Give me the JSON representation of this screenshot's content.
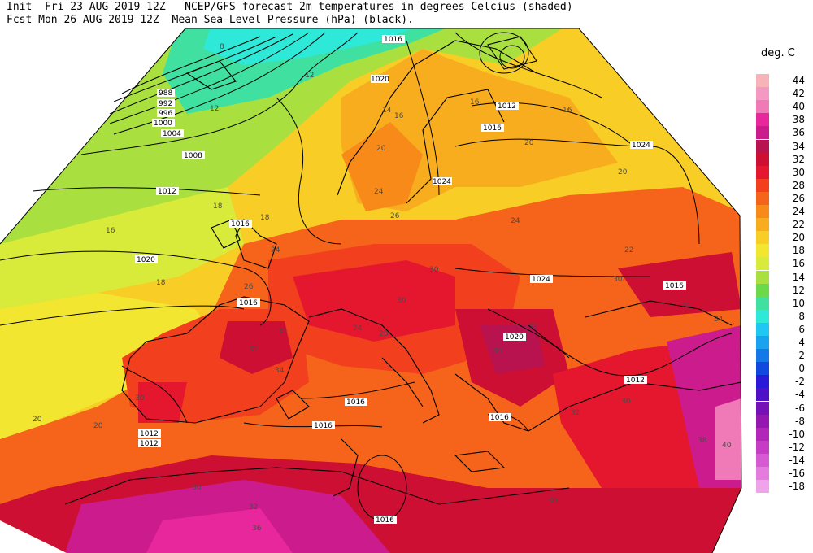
{
  "header": {
    "line1": "Init  Fri 23 AUG 2019 12Z   NCEP/GFS forecast 2m temperatures in degrees Celcius (shaded)",
    "line2": "Fcst Mon 26 AUG 2019 12Z  Mean Sea-Level Pressure (hPa) (black)."
  },
  "legend": {
    "title": "deg. C",
    "items": [
      {
        "label": "44",
        "color": "#f6b3b8"
      },
      {
        "label": "42",
        "color": "#f49ac2"
      },
      {
        "label": "40",
        "color": "#f07ab8"
      },
      {
        "label": "38",
        "color": "#e9279c"
      },
      {
        "label": "36",
        "color": "#cc1b8c"
      },
      {
        "label": "34",
        "color": "#b8134f"
      },
      {
        "label": "32",
        "color": "#cc0f33"
      },
      {
        "label": "30",
        "color": "#e5172e"
      },
      {
        "label": "28",
        "color": "#f2401e"
      },
      {
        "label": "26",
        "color": "#f5641a"
      },
      {
        "label": "24",
        "color": "#f78a18"
      },
      {
        "label": "22",
        "color": "#f7ad1e"
      },
      {
        "label": "20",
        "color": "#f7cd26"
      },
      {
        "label": "18",
        "color": "#f3e631"
      },
      {
        "label": "16",
        "color": "#d8ea3a"
      },
      {
        "label": "14",
        "color": "#a9e040"
      },
      {
        "label": "12",
        "color": "#6cd84c"
      },
      {
        "label": "10",
        "color": "#3fe0a0"
      },
      {
        "label": "8",
        "color": "#2ee8d8"
      },
      {
        "label": "6",
        "color": "#1fc8f0"
      },
      {
        "label": "4",
        "color": "#18a3ee"
      },
      {
        "label": "2",
        "color": "#1478e8"
      },
      {
        "label": "0",
        "color": "#1048e0"
      },
      {
        "label": "-2",
        "color": "#2a1ad8"
      },
      {
        "label": "-4",
        "color": "#5010c8"
      },
      {
        "label": "-6",
        "color": "#7412b8"
      },
      {
        "label": "-8",
        "color": "#9418b0"
      },
      {
        "label": "-10",
        "color": "#b226b8"
      },
      {
        "label": "-12",
        "color": "#c63cc4"
      },
      {
        "label": "-14",
        "color": "#d65ad2"
      },
      {
        "label": "-16",
        "color": "#e47cde"
      },
      {
        "label": "-18",
        "color": "#f0a2ea"
      }
    ]
  },
  "isobar_labels": [
    "988",
    "992",
    "996",
    "1000",
    "1004",
    "1008",
    "1012",
    "1016",
    "1020",
    "1024"
  ],
  "temperature_labels": [
    "8",
    "12",
    "14",
    "16",
    "18",
    "20",
    "22",
    "24",
    "26",
    "28",
    "30",
    "32",
    "34",
    "36",
    "38",
    "40"
  ]
}
